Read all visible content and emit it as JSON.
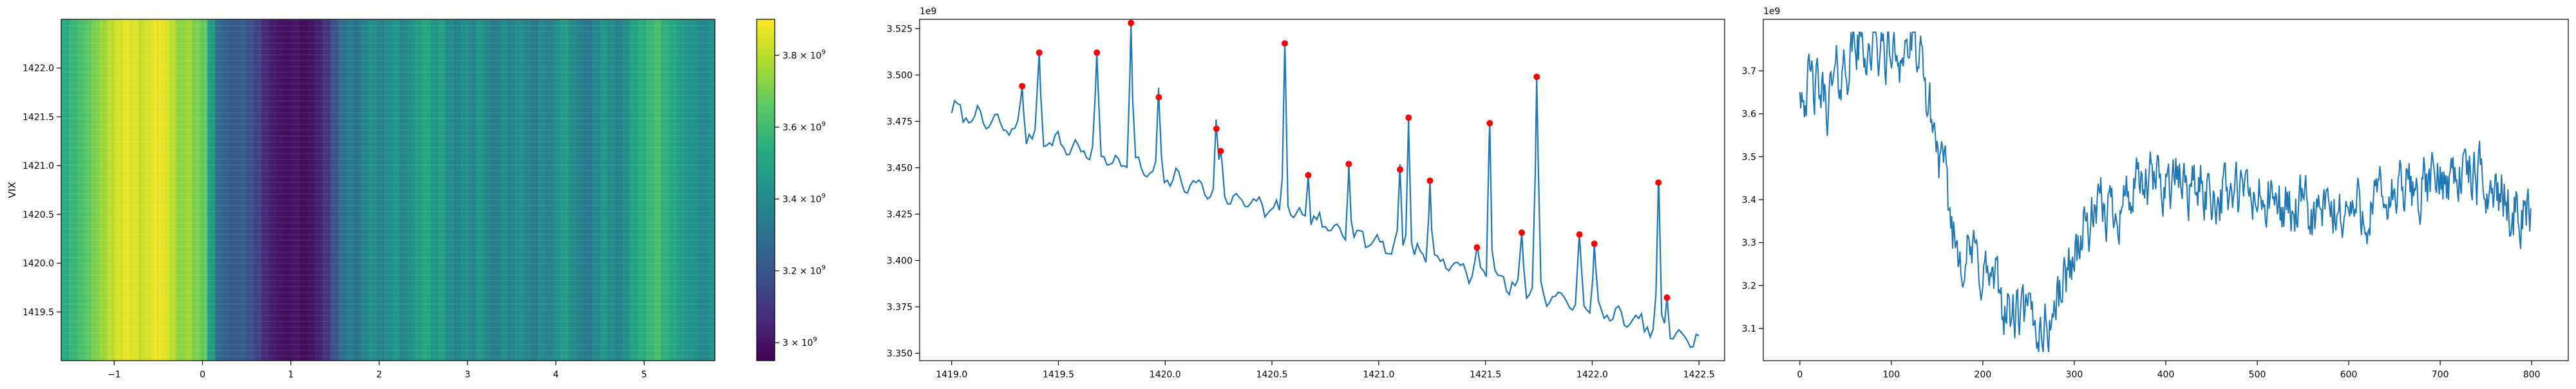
{
  "chart_data": [
    {
      "type": "heatmap",
      "ylabel": "VIX",
      "xlim": [
        -1.6,
        5.8
      ],
      "ylim": [
        1419.0,
        1422.5
      ],
      "xticks": [
        "−1",
        "0",
        "1",
        "2",
        "3",
        "4",
        "5"
      ],
      "xtick_values": [
        -1,
        0,
        1,
        2,
        3,
        4,
        5
      ],
      "yticks": [
        "1419.5",
        "1420.0",
        "1420.5",
        "1421.0",
        "1421.5",
        "1422.0"
      ],
      "ytick_values": [
        1419.5,
        1420.0,
        1420.5,
        1421.0,
        1421.5,
        1422.0
      ],
      "colorbar": {
        "colormap": "viridis",
        "range": [
          2950000000.0,
          3900000000.0
        ],
        "tick_values": [
          3000000000.0,
          3200000000.0,
          3400000000.0,
          3600000000.0,
          3800000000.0
        ],
        "tick_base": "3 × 10",
        "tick_labels": [
          {
            "mantissa": "3",
            "exp": "9"
          },
          {
            "mantissa": "3.2",
            "exp": "9"
          },
          {
            "mantissa": "3.4",
            "exp": "9"
          },
          {
            "mantissa": "3.6",
            "exp": "9"
          },
          {
            "mantissa": "3.8",
            "exp": "9"
          }
        ]
      },
      "column_levels_note": "colour level per vertical stripe (fraction of colour range), left to right",
      "column_levels": [
        0.62,
        0.66,
        0.7,
        0.75,
        0.8,
        0.85,
        0.9,
        0.94,
        0.97,
        0.95,
        0.92,
        0.95,
        0.98,
        0.96,
        0.9,
        0.82,
        0.85,
        0.8,
        0.76,
        0.55,
        0.35,
        0.3,
        0.28,
        0.3,
        0.25,
        0.2,
        0.12,
        0.08,
        0.05,
        0.04,
        0.06,
        0.03,
        0.05,
        0.09,
        0.15,
        0.25,
        0.35,
        0.42,
        0.38,
        0.45,
        0.5,
        0.44,
        0.48,
        0.52,
        0.46,
        0.5,
        0.55,
        0.6,
        0.52,
        0.56,
        0.48,
        0.45,
        0.5,
        0.46,
        0.52,
        0.45,
        0.42,
        0.48,
        0.44,
        0.5,
        0.46,
        0.42,
        0.47,
        0.44,
        0.5,
        0.55,
        0.48,
        0.44,
        0.4,
        0.46,
        0.52,
        0.48,
        0.44,
        0.5,
        0.58,
        0.62,
        0.66,
        0.7,
        0.64,
        0.6,
        0.55,
        0.52,
        0.5,
        0.46,
        0.5
      ]
    },
    {
      "type": "line",
      "offset_text": "1e9",
      "xlim": [
        1418.85,
        1422.62
      ],
      "ylim": [
        3.346,
        3.53
      ],
      "xticks": [
        "1419.0",
        "1419.5",
        "1420.0",
        "1420.5",
        "1421.0",
        "1421.5",
        "1422.0",
        "1422.5"
      ],
      "xtick_values": [
        1419.0,
        1419.5,
        1420.0,
        1420.5,
        1421.0,
        1421.5,
        1422.0,
        1422.5
      ],
      "yticks": [
        "3.350",
        "3.375",
        "3.400",
        "3.425",
        "3.450",
        "3.475",
        "3.500",
        "3.525"
      ],
      "ytick_values": [
        3.35,
        3.375,
        3.4,
        3.425,
        3.45,
        3.475,
        3.5,
        3.525
      ],
      "line_color": "#1f77b4",
      "marker_color": "#ff0000",
      "x_start": 1419.0,
      "x_end": 1422.5,
      "baseline": {
        "start": 3.481,
        "end": 3.356
      },
      "peaks": [
        {
          "x": 1419.33,
          "y": 3.494
        },
        {
          "x": 1419.41,
          "y": 3.512
        },
        {
          "x": 1419.68,
          "y": 3.512
        },
        {
          "x": 1419.84,
          "y": 3.528
        },
        {
          "x": 1419.97,
          "y": 3.488
        },
        {
          "x": 1420.24,
          "y": 3.471
        },
        {
          "x": 1420.26,
          "y": 3.459
        },
        {
          "x": 1420.56,
          "y": 3.517
        },
        {
          "x": 1420.67,
          "y": 3.446
        },
        {
          "x": 1420.86,
          "y": 3.452
        },
        {
          "x": 1421.1,
          "y": 3.449
        },
        {
          "x": 1421.14,
          "y": 3.477
        },
        {
          "x": 1421.24,
          "y": 3.443
        },
        {
          "x": 1421.46,
          "y": 3.407
        },
        {
          "x": 1421.52,
          "y": 3.474
        },
        {
          "x": 1421.67,
          "y": 3.415
        },
        {
          "x": 1421.74,
          "y": 3.499
        },
        {
          "x": 1421.94,
          "y": 3.414
        },
        {
          "x": 1422.01,
          "y": 3.409
        },
        {
          "x": 1422.31,
          "y": 3.442
        },
        {
          "x": 1422.35,
          "y": 3.38
        }
      ]
    },
    {
      "type": "line",
      "offset_text": "1e9",
      "xlim": [
        -40,
        840
      ],
      "ylim": [
        3.025,
        3.82
      ],
      "xticks": [
        "0",
        "100",
        "200",
        "300",
        "400",
        "500",
        "600",
        "700",
        "800"
      ],
      "xtick_values": [
        0,
        100,
        200,
        300,
        400,
        500,
        600,
        700,
        800
      ],
      "yticks": [
        "3.1",
        "3.2",
        "3.3",
        "3.4",
        "3.5",
        "3.6",
        "3.7"
      ],
      "ytick_values": [
        3.1,
        3.2,
        3.3,
        3.4,
        3.5,
        3.6,
        3.7
      ],
      "line_color": "#1f77b4",
      "n_points": 800,
      "trend": [
        {
          "x": 0,
          "y": 3.68
        },
        {
          "x": 30,
          "y": 3.63
        },
        {
          "x": 60,
          "y": 3.76
        },
        {
          "x": 100,
          "y": 3.74
        },
        {
          "x": 125,
          "y": 3.76
        },
        {
          "x": 145,
          "y": 3.58
        },
        {
          "x": 170,
          "y": 3.3
        },
        {
          "x": 200,
          "y": 3.24
        },
        {
          "x": 230,
          "y": 3.13
        },
        {
          "x": 270,
          "y": 3.1
        },
        {
          "x": 290,
          "y": 3.22
        },
        {
          "x": 310,
          "y": 3.33
        },
        {
          "x": 350,
          "y": 3.4
        },
        {
          "x": 400,
          "y": 3.45
        },
        {
          "x": 450,
          "y": 3.42
        },
        {
          "x": 500,
          "y": 3.4
        },
        {
          "x": 560,
          "y": 3.36
        },
        {
          "x": 620,
          "y": 3.38
        },
        {
          "x": 680,
          "y": 3.43
        },
        {
          "x": 720,
          "y": 3.47
        },
        {
          "x": 760,
          "y": 3.42
        },
        {
          "x": 790,
          "y": 3.37
        },
        {
          "x": 800,
          "y": 3.38
        }
      ]
    }
  ]
}
